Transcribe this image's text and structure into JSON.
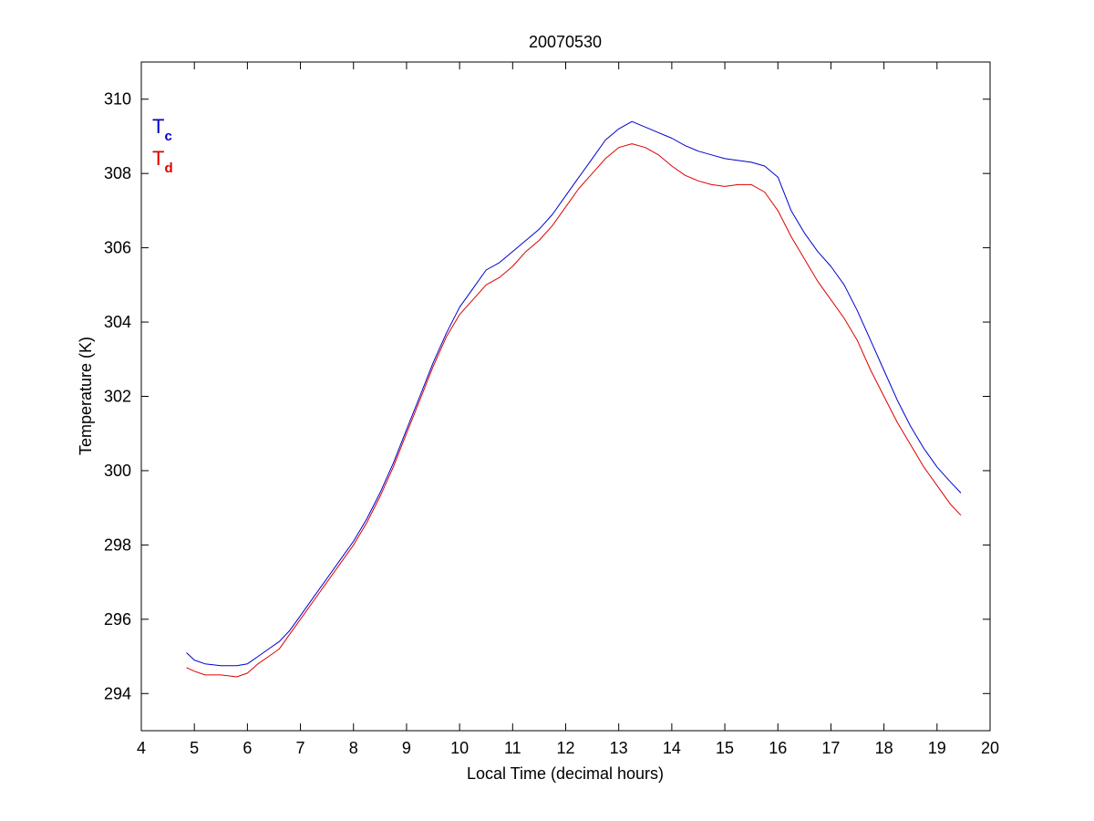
{
  "chart_data": {
    "type": "line",
    "title": "20070530",
    "xlabel": "Local Time (decimal hours)",
    "ylabel": "Temperature (K)",
    "xlim": [
      4,
      20
    ],
    "ylim": [
      293,
      311
    ],
    "xticks": [
      "4",
      "5",
      "6",
      "7",
      "8",
      "9",
      "10",
      "11",
      "12",
      "13",
      "14",
      "15",
      "16",
      "17",
      "18",
      "19",
      "20"
    ],
    "yticks": [
      "294",
      "296",
      "298",
      "300",
      "302",
      "304",
      "306",
      "308",
      "310"
    ],
    "grid": false,
    "legend": "top-left",
    "series": [
      {
        "name": "Tc",
        "name_main": "T",
        "name_sub": "c",
        "color": "#0000cc",
        "x": [
          4.85,
          5.0,
          5.2,
          5.5,
          5.8,
          6.0,
          6.2,
          6.4,
          6.6,
          6.8,
          7.0,
          7.25,
          7.5,
          7.75,
          8.0,
          8.25,
          8.5,
          8.75,
          9.0,
          9.25,
          9.5,
          9.75,
          10.0,
          10.25,
          10.5,
          10.75,
          11.0,
          11.25,
          11.5,
          11.75,
          12.0,
          12.25,
          12.5,
          12.75,
          13.0,
          13.25,
          13.5,
          13.75,
          14.0,
          14.25,
          14.5,
          14.75,
          15.0,
          15.25,
          15.5,
          15.75,
          16.0,
          16.25,
          16.5,
          16.75,
          17.0,
          17.25,
          17.5,
          17.75,
          18.0,
          18.25,
          18.5,
          18.75,
          19.0,
          19.25,
          19.45
        ],
        "y": [
          295.1,
          294.9,
          294.8,
          294.75,
          294.75,
          294.8,
          295.0,
          295.2,
          295.4,
          295.7,
          296.1,
          296.6,
          297.1,
          297.6,
          298.1,
          298.7,
          299.4,
          300.2,
          301.1,
          302.0,
          302.9,
          303.7,
          304.4,
          304.9,
          305.4,
          305.6,
          305.9,
          306.2,
          306.5,
          306.9,
          307.4,
          307.9,
          308.4,
          308.9,
          309.2,
          309.4,
          309.25,
          309.1,
          308.95,
          308.75,
          308.6,
          308.5,
          308.4,
          308.35,
          308.3,
          308.2,
          307.9,
          307.0,
          306.4,
          305.9,
          305.5,
          305.0,
          304.3,
          303.5,
          302.7,
          301.9,
          301.2,
          300.6,
          300.1,
          299.7,
          299.4
        ]
      },
      {
        "name": "Td",
        "name_main": "T",
        "name_sub": "d",
        "color": "#dd0000",
        "x": [
          4.85,
          5.0,
          5.2,
          5.5,
          5.8,
          6.0,
          6.2,
          6.4,
          6.6,
          6.8,
          7.0,
          7.25,
          7.5,
          7.75,
          8.0,
          8.25,
          8.5,
          8.75,
          9.0,
          9.25,
          9.5,
          9.75,
          10.0,
          10.25,
          10.5,
          10.75,
          11.0,
          11.25,
          11.5,
          11.75,
          12.0,
          12.25,
          12.5,
          12.75,
          13.0,
          13.25,
          13.5,
          13.75,
          14.0,
          14.25,
          14.5,
          14.75,
          15.0,
          15.25,
          15.5,
          15.75,
          16.0,
          16.25,
          16.5,
          16.75,
          17.0,
          17.25,
          17.5,
          17.75,
          18.0,
          18.25,
          18.5,
          18.75,
          19.0,
          19.25,
          19.45
        ],
        "y": [
          294.7,
          294.6,
          294.5,
          294.5,
          294.45,
          294.55,
          294.8,
          295.0,
          295.2,
          295.6,
          296.0,
          296.5,
          297.0,
          297.5,
          298.0,
          298.6,
          299.3,
          300.1,
          301.0,
          301.9,
          302.8,
          303.6,
          304.2,
          304.6,
          305.0,
          305.2,
          305.5,
          305.9,
          306.2,
          306.6,
          307.1,
          307.6,
          308.0,
          308.4,
          308.7,
          308.8,
          308.7,
          308.5,
          308.2,
          307.95,
          307.8,
          307.7,
          307.65,
          307.7,
          307.7,
          307.5,
          307.0,
          306.3,
          305.7,
          305.1,
          304.6,
          304.1,
          303.5,
          302.7,
          302.0,
          301.3,
          300.7,
          300.1,
          299.6,
          299.1,
          298.8
        ]
      }
    ]
  }
}
